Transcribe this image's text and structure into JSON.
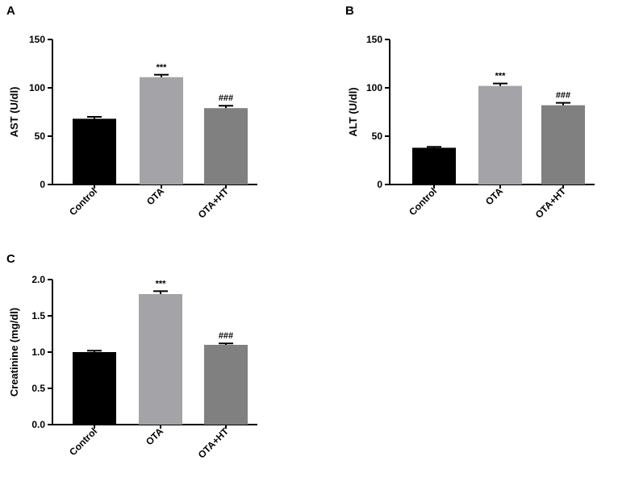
{
  "chart_data": [
    {
      "type": "bar",
      "panel_label": "A",
      "ylabel": "AST (U/dl)",
      "xlabel": "",
      "categories": [
        "Control",
        "OTA",
        "OTA+HT"
      ],
      "values": [
        68,
        111,
        79
      ],
      "errors": [
        2,
        2.5,
        2.5
      ],
      "annotations": [
        "",
        "***",
        "###"
      ],
      "ylim": [
        0,
        150
      ],
      "yticks": [
        "0",
        "50",
        "100",
        "150"
      ],
      "bar_colors": [
        "#000000",
        "#a4a3a8",
        "#808080"
      ],
      "grid": false,
      "legend": "none"
    },
    {
      "type": "bar",
      "panel_label": "B",
      "ylabel": "ALT (U/dl)",
      "xlabel": "",
      "categories": [
        "Control",
        "OTA",
        "OTA+HT"
      ],
      "values": [
        38,
        102,
        82
      ],
      "errors": [
        1,
        2.5,
        2.5
      ],
      "annotations": [
        "",
        "***",
        "###"
      ],
      "ylim": [
        0,
        150
      ],
      "yticks": [
        "0",
        "50",
        "100",
        "150"
      ],
      "bar_colors": [
        "#000000",
        "#a4a3a8",
        "#808080"
      ],
      "grid": false,
      "legend": "none"
    },
    {
      "type": "bar",
      "panel_label": "C",
      "ylabel": "Creatinine (mg/dl)",
      "xlabel": "",
      "categories": [
        "Control",
        "OTA",
        "OTA+HT"
      ],
      "values": [
        1.0,
        1.8,
        1.1
      ],
      "errors": [
        0.02,
        0.04,
        0.02
      ],
      "annotations": [
        "",
        "***",
        "###"
      ],
      "ylim": [
        0,
        2.0
      ],
      "yticks": [
        "0.0",
        "0.5",
        "1.0",
        "1.5",
        "2.0"
      ],
      "bar_colors": [
        "#000000",
        "#a4a3a8",
        "#808080"
      ],
      "grid": false,
      "legend": "none"
    }
  ]
}
